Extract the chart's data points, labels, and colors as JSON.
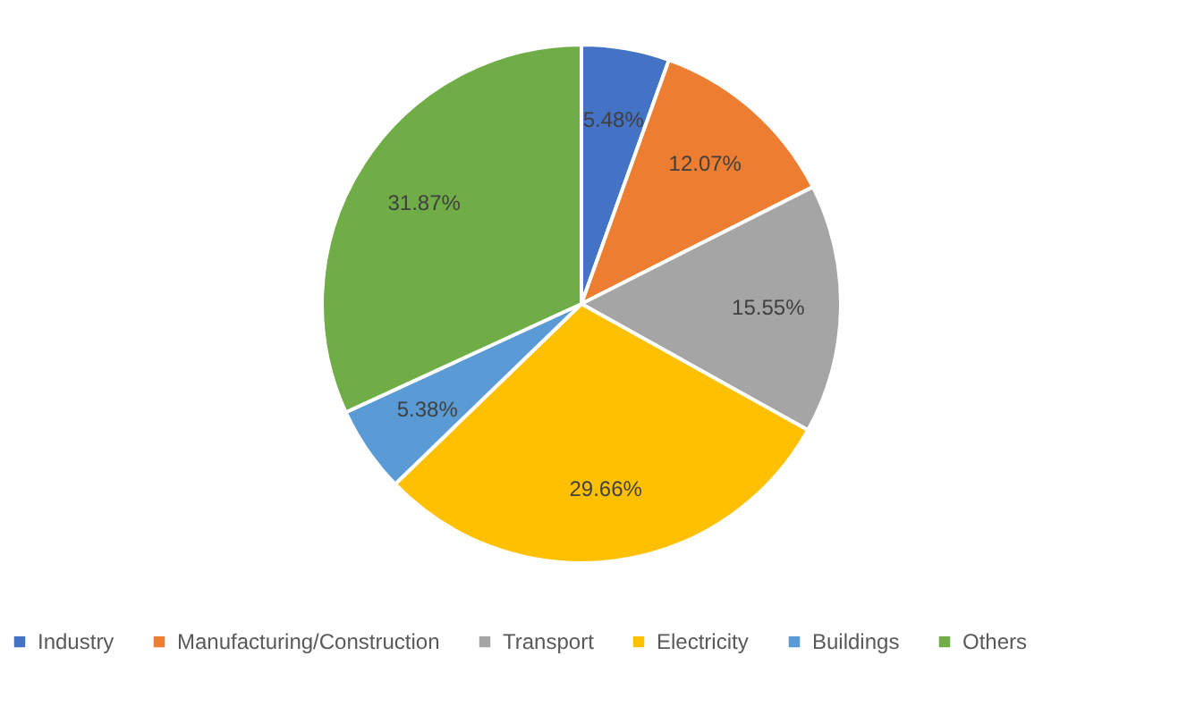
{
  "chart_data": {
    "type": "pie",
    "categories": [
      "Industry",
      "Manufacturing/Construction",
      "Transport",
      "Electricity",
      "Buildings",
      "Others"
    ],
    "values": [
      5.48,
      12.07,
      15.55,
      29.66,
      5.38,
      31.87
    ],
    "colors": [
      "#4472c4",
      "#ed7d31",
      "#a5a5a5",
      "#ffc000",
      "#5b9bd5",
      "#70ad47"
    ],
    "value_labels": [
      "5.48%",
      "12.07%",
      "15.55%",
      "29.66%",
      "5.38%",
      "31.87%"
    ],
    "legend": "bottom"
  }
}
